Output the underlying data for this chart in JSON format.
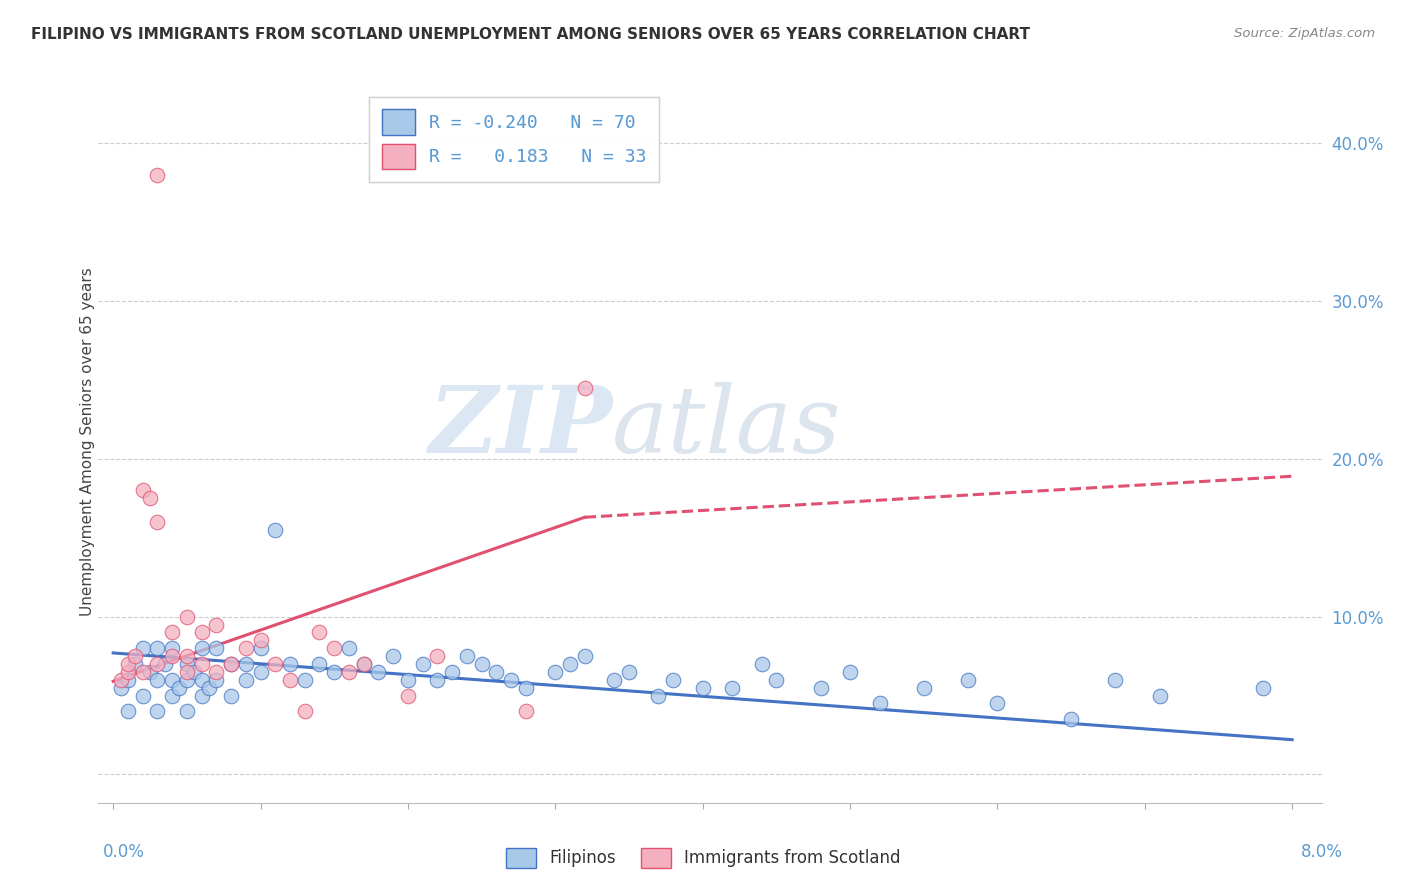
{
  "title": "FILIPINO VS IMMIGRANTS FROM SCOTLAND UNEMPLOYMENT AMONG SENIORS OVER 65 YEARS CORRELATION CHART",
  "source": "Source: ZipAtlas.com",
  "ylabel": "Unemployment Among Seniors over 65 years",
  "color_filipino": "#a8c8e8",
  "color_scotland": "#f4b0c0",
  "color_line_filipino": "#4472c4",
  "color_line_scotland": "#e05070",
  "watermark_zip": "ZIP",
  "watermark_atlas": "atlas",
  "xlim": [
    -0.001,
    0.082
  ],
  "ylim": [
    -0.018,
    0.44
  ],
  "yticks": [
    0.0,
    0.1,
    0.2,
    0.3,
    0.4
  ],
  "ytick_labels": [
    "",
    "10.0%",
    "20.0%",
    "30.0%",
    "40.0%"
  ],
  "fil_trend_x0": 0.0,
  "fil_trend_y0": 0.077,
  "fil_trend_x1": 0.08,
  "fil_trend_y1": 0.022,
  "sco_trend_x0": 0.0,
  "sco_trend_y0": 0.059,
  "sco_trend_x1": 0.032,
  "sco_trend_y1": 0.163,
  "sco_trend_dashed_x0": 0.032,
  "sco_trend_dashed_y0": 0.163,
  "sco_trend_dashed_x1": 0.08,
  "sco_trend_dashed_y1": 0.189,
  "filipino_x": [
    0.0005,
    0.001,
    0.001,
    0.0015,
    0.002,
    0.002,
    0.0025,
    0.003,
    0.003,
    0.003,
    0.0035,
    0.004,
    0.004,
    0.004,
    0.0045,
    0.005,
    0.005,
    0.005,
    0.0055,
    0.006,
    0.006,
    0.006,
    0.0065,
    0.007,
    0.007,
    0.008,
    0.008,
    0.009,
    0.009,
    0.01,
    0.01,
    0.011,
    0.012,
    0.013,
    0.014,
    0.015,
    0.016,
    0.017,
    0.018,
    0.019,
    0.02,
    0.021,
    0.022,
    0.023,
    0.024,
    0.025,
    0.026,
    0.027,
    0.028,
    0.03,
    0.031,
    0.032,
    0.034,
    0.035,
    0.037,
    0.038,
    0.04,
    0.042,
    0.044,
    0.045,
    0.048,
    0.05,
    0.052,
    0.055,
    0.058,
    0.06,
    0.065,
    0.068,
    0.071,
    0.078
  ],
  "filipino_y": [
    0.055,
    0.06,
    0.04,
    0.07,
    0.05,
    0.08,
    0.065,
    0.06,
    0.04,
    0.08,
    0.07,
    0.05,
    0.06,
    0.08,
    0.055,
    0.06,
    0.07,
    0.04,
    0.065,
    0.08,
    0.06,
    0.05,
    0.055,
    0.08,
    0.06,
    0.07,
    0.05,
    0.07,
    0.06,
    0.065,
    0.08,
    0.155,
    0.07,
    0.06,
    0.07,
    0.065,
    0.08,
    0.07,
    0.065,
    0.075,
    0.06,
    0.07,
    0.06,
    0.065,
    0.075,
    0.07,
    0.065,
    0.06,
    0.055,
    0.065,
    0.07,
    0.075,
    0.06,
    0.065,
    0.05,
    0.06,
    0.055,
    0.055,
    0.07,
    0.06,
    0.055,
    0.065,
    0.045,
    0.055,
    0.06,
    0.045,
    0.035,
    0.06,
    0.05,
    0.055
  ],
  "scotland_x": [
    0.0005,
    0.001,
    0.001,
    0.0015,
    0.002,
    0.002,
    0.0025,
    0.003,
    0.003,
    0.003,
    0.004,
    0.004,
    0.005,
    0.005,
    0.005,
    0.006,
    0.006,
    0.007,
    0.007,
    0.008,
    0.009,
    0.01,
    0.011,
    0.012,
    0.013,
    0.014,
    0.015,
    0.016,
    0.017,
    0.02,
    0.022,
    0.028,
    0.032
  ],
  "scotland_y": [
    0.06,
    0.065,
    0.07,
    0.075,
    0.18,
    0.065,
    0.175,
    0.16,
    0.07,
    0.38,
    0.075,
    0.09,
    0.065,
    0.1,
    0.075,
    0.07,
    0.09,
    0.065,
    0.095,
    0.07,
    0.08,
    0.085,
    0.07,
    0.06,
    0.04,
    0.09,
    0.08,
    0.065,
    0.07,
    0.05,
    0.075,
    0.04,
    0.245
  ]
}
